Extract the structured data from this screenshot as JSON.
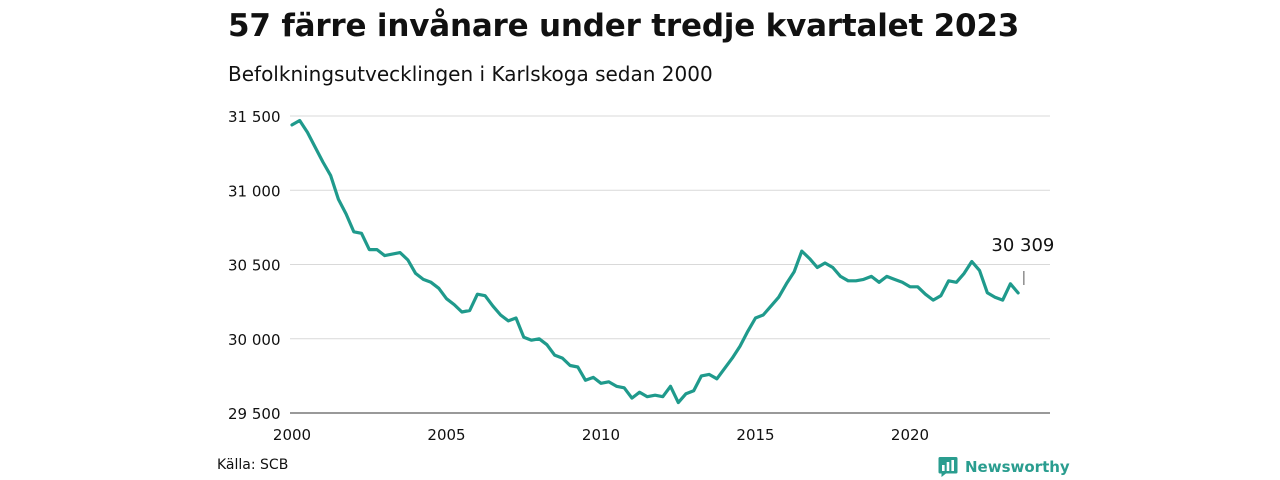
{
  "header": {
    "title": "57 färre invånare under tredje kvartalet 2023",
    "subtitle": "Befolkningsutvecklingen i Karlskoga sedan 2000"
  },
  "footer": {
    "source": "Källa: SCB",
    "brand": "Newsworthy"
  },
  "colors": {
    "line": "#1f9a8c",
    "grid": "#d9d9d9",
    "brand": "#2a9d8f"
  },
  "chart_data": {
    "type": "line",
    "title": "57 färre invånare under tredje kvartalet 2023",
    "subtitle": "Befolkningsutvecklingen i Karlskoga sedan 2000",
    "xlabel": "",
    "ylabel": "",
    "xlim": [
      2000,
      2024.5
    ],
    "ylim": [
      29500,
      31500
    ],
    "x_ticks": [
      2000,
      2005,
      2010,
      2015,
      2020
    ],
    "x_tick_labels": [
      "2000",
      "2005",
      "2010",
      "2015",
      "2020"
    ],
    "y_ticks": [
      29500,
      30000,
      30500,
      31000,
      31500
    ],
    "y_tick_labels": [
      "29 500",
      "30 000",
      "30 500",
      "31 000",
      "31 500"
    ],
    "grid": "horizontal",
    "annotation": {
      "text": "30 309",
      "x": 2023.75,
      "y": 30309
    },
    "series": [
      {
        "points": [
          [
            2000.0,
            31440
          ],
          [
            2000.25,
            31470
          ],
          [
            2000.5,
            31390
          ],
          [
            2000.75,
            31290
          ],
          [
            2001.0,
            31190
          ],
          [
            2001.25,
            31100
          ],
          [
            2001.5,
            30940
          ],
          [
            2001.75,
            30840
          ],
          [
            2002.0,
            30720
          ],
          [
            2002.25,
            30710
          ],
          [
            2002.5,
            30600
          ],
          [
            2002.75,
            30600
          ],
          [
            2003.0,
            30560
          ],
          [
            2003.25,
            30570
          ],
          [
            2003.5,
            30580
          ],
          [
            2003.75,
            30530
          ],
          [
            2004.0,
            30440
          ],
          [
            2004.25,
            30400
          ],
          [
            2004.5,
            30380
          ],
          [
            2004.75,
            30340
          ],
          [
            2005.0,
            30270
          ],
          [
            2005.25,
            30230
          ],
          [
            2005.5,
            30180
          ],
          [
            2005.75,
            30190
          ],
          [
            2006.0,
            30300
          ],
          [
            2006.25,
            30290
          ],
          [
            2006.5,
            30220
          ],
          [
            2006.75,
            30160
          ],
          [
            2007.0,
            30120
          ],
          [
            2007.25,
            30140
          ],
          [
            2007.5,
            30010
          ],
          [
            2007.75,
            29990
          ],
          [
            2008.0,
            30000
          ],
          [
            2008.25,
            29960
          ],
          [
            2008.5,
            29890
          ],
          [
            2008.75,
            29870
          ],
          [
            2009.0,
            29820
          ],
          [
            2009.25,
            29810
          ],
          [
            2009.5,
            29720
          ],
          [
            2009.75,
            29740
          ],
          [
            2010.0,
            29700
          ],
          [
            2010.25,
            29710
          ],
          [
            2010.5,
            29680
          ],
          [
            2010.75,
            29670
          ],
          [
            2011.0,
            29600
          ],
          [
            2011.25,
            29640
          ],
          [
            2011.5,
            29610
          ],
          [
            2011.75,
            29620
          ],
          [
            2012.0,
            29610
          ],
          [
            2012.25,
            29680
          ],
          [
            2012.5,
            29570
          ],
          [
            2012.75,
            29630
          ],
          [
            2013.0,
            29650
          ],
          [
            2013.25,
            29750
          ],
          [
            2013.5,
            29760
          ],
          [
            2013.75,
            29730
          ],
          [
            2014.0,
            29800
          ],
          [
            2014.25,
            29870
          ],
          [
            2014.5,
            29950
          ],
          [
            2014.75,
            30050
          ],
          [
            2015.0,
            30140
          ],
          [
            2015.25,
            30160
          ],
          [
            2015.5,
            30220
          ],
          [
            2015.75,
            30280
          ],
          [
            2016.0,
            30370
          ],
          [
            2016.25,
            30450
          ],
          [
            2016.5,
            30590
          ],
          [
            2016.75,
            30540
          ],
          [
            2017.0,
            30480
          ],
          [
            2017.25,
            30510
          ],
          [
            2017.5,
            30480
          ],
          [
            2017.75,
            30420
          ],
          [
            2018.0,
            30390
          ],
          [
            2018.25,
            30390
          ],
          [
            2018.5,
            30400
          ],
          [
            2018.75,
            30420
          ],
          [
            2019.0,
            30380
          ],
          [
            2019.25,
            30420
          ],
          [
            2019.5,
            30400
          ],
          [
            2019.75,
            30380
          ],
          [
            2020.0,
            30350
          ],
          [
            2020.25,
            30350
          ],
          [
            2020.5,
            30300
          ],
          [
            2020.75,
            30260
          ],
          [
            2021.0,
            30290
          ],
          [
            2021.25,
            30390
          ],
          [
            2021.5,
            30380
          ],
          [
            2021.75,
            30440
          ],
          [
            2022.0,
            30520
          ],
          [
            2022.25,
            30460
          ],
          [
            2022.5,
            30310
          ],
          [
            2022.75,
            30280
          ],
          [
            2023.0,
            30260
          ],
          [
            2023.25,
            30370
          ],
          [
            2023.5,
            30309
          ]
        ]
      }
    ]
  }
}
